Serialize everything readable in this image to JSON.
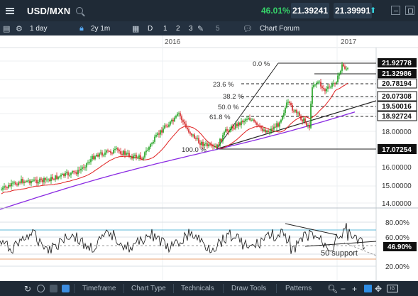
{
  "header": {
    "symbol": "USD/MXN",
    "change_pct": "46.01%",
    "sell_price": "21.39241",
    "buy_price": "21.39991"
  },
  "toolbar": {
    "interval": "1 day",
    "range": "2y 1m",
    "periods": [
      "D",
      "1",
      "2",
      "3"
    ],
    "chart_forum": "Chart Forum",
    "extra_count": "5"
  },
  "chart": {
    "year_labels": [
      "2016",
      "2017"
    ],
    "fib_labels": [
      "0.0 %",
      "23.6 %",
      "38.2 %",
      "50.0 %",
      "61.8 %",
      "100.0 %"
    ],
    "fib_values": [
      "21.92778",
      "20.78194",
      "20.07308",
      "19.50016",
      "18.92724",
      "17.07254"
    ],
    "current_price_tag": "21.32986",
    "price_axis_labels": [
      "18.00000",
      "16.00000",
      "15.00000",
      "14.00000"
    ],
    "rsi_axis_labels": [
      "80.00%",
      "60.00%",
      "20.00%"
    ],
    "rsi_current": "46.90%",
    "rsi_annotation": "50 support",
    "colors": {
      "up": "#1aa01a",
      "down": "#d22020",
      "ma_fast": "#e02020",
      "ma_slow": "#8a2be2"
    }
  },
  "bottom": {
    "tabs": [
      "Timeframe",
      "Chart Type",
      "Technicals",
      "Draw Tools",
      "Patterns"
    ]
  }
}
